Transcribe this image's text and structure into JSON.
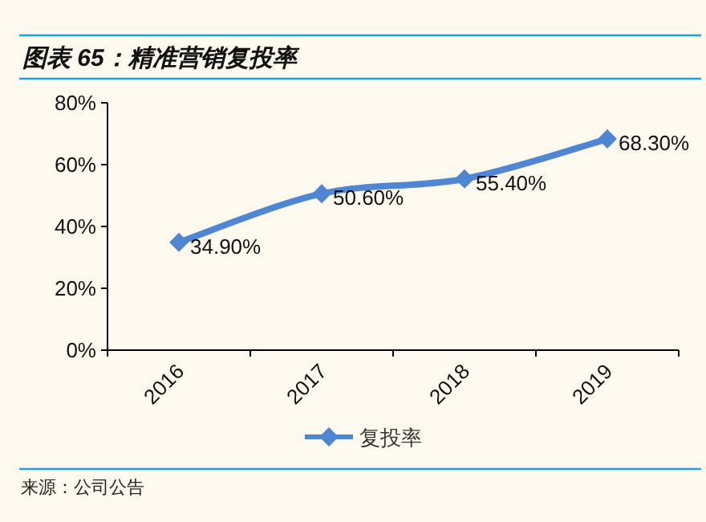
{
  "chart_data": {
    "type": "line",
    "title": "图表 65：精准营销复投率",
    "categories": [
      "2016",
      "2017",
      "2018",
      "2019"
    ],
    "series": [
      {
        "name": "复投率",
        "color": "#4f86d4",
        "values": [
          34.9,
          50.6,
          55.4,
          68.3
        ],
        "value_labels": [
          "34.90%",
          "50.60%",
          "55.40%",
          "68.30%"
        ]
      }
    ],
    "ylim": [
      0,
      80
    ],
    "yticks": [
      {
        "value": 0,
        "label": "0%"
      },
      {
        "value": 20,
        "label": "20%"
      },
      {
        "value": 40,
        "label": "40%"
      },
      {
        "value": 60,
        "label": "60%"
      },
      {
        "value": 80,
        "label": "80%"
      }
    ],
    "marker": "diamond",
    "legend": "bottom",
    "grid": false,
    "annotations": [
      "来源：公司公告"
    ]
  }
}
